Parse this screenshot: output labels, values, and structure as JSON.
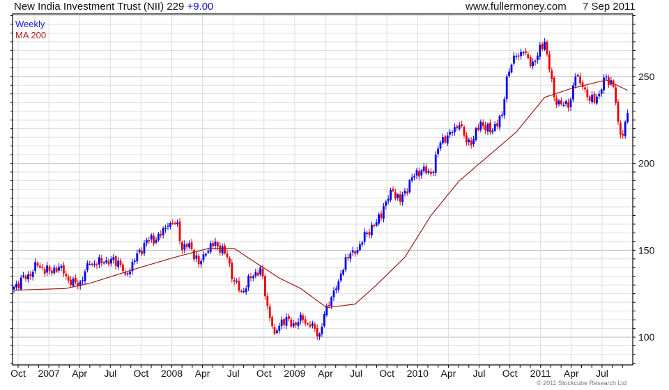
{
  "header": {
    "title": "New India Investment Trust (NII) 229",
    "change": "+9.00",
    "site": "www.fullermoney.com",
    "date": "7 Sep 2011"
  },
  "footer": {
    "copyright": "© 2011 Stockcube Research Ltd"
  },
  "colors": {
    "up": "#0000ee",
    "down": "#ee0000",
    "ma": "#a01818",
    "grid": "#dcdcdc",
    "grid_major": "#bbbbbb"
  },
  "chart_data": {
    "type": "bar",
    "subtype": "weekly-ohlc-with-moving-average",
    "title": "New India Investment Trust (NII) 229 +9.00",
    "legend": [
      "Weekly",
      "MA 200"
    ],
    "legend_position": "top-left",
    "ylim": [
      84,
      286
    ],
    "y_ticks": [
      "100",
      "150",
      "200",
      "250"
    ],
    "y_tick_values": [
      100,
      150,
      200,
      250
    ],
    "x_tick_labels": [
      "Oct",
      "2007",
      "Apr",
      "Jul",
      "Oct",
      "2008",
      "Apr",
      "Jul",
      "Oct",
      "2009",
      "Apr",
      "Jul",
      "Oct",
      "2010",
      "Apr",
      "Jul",
      "Oct",
      "2011",
      "Apr",
      "Jul"
    ],
    "x_range": "Sep 2006 - Sep 2011 (260 weeks)",
    "weekly_close_anchors": {
      "week": [
        0,
        6,
        10,
        15,
        20,
        24,
        28,
        32,
        38,
        44,
        47,
        51,
        56,
        60,
        65,
        69,
        71,
        74,
        78,
        81,
        85,
        90,
        93,
        96,
        100,
        104,
        107,
        110,
        113,
        118,
        122,
        125,
        129,
        132,
        137,
        140,
        144,
        149,
        153,
        157,
        160,
        163,
        168,
        172,
        176,
        180,
        184,
        188,
        191,
        194,
        197,
        201,
        206,
        208,
        211,
        215,
        218,
        221,
        224,
        226,
        228,
        231,
        234,
        237,
        240,
        243,
        247,
        250,
        253,
        255,
        257,
        259
      ],
      "close": [
        129,
        136,
        141,
        138,
        141,
        130,
        132,
        142,
        143,
        144,
        136,
        144,
        156,
        156,
        164,
        166,
        150,
        154,
        142,
        148,
        155,
        146,
        132,
        126,
        134,
        140,
        118,
        102,
        110,
        108,
        110,
        106,
        102,
        118,
        132,
        146,
        148,
        160,
        166,
        178,
        184,
        178,
        192,
        196,
        194,
        212,
        218,
        222,
        212,
        214,
        224,
        218,
        228,
        250,
        262,
        264,
        256,
        262,
        270,
        254,
        238,
        234,
        232,
        250,
        244,
        236,
        240,
        250,
        244,
        224,
        216,
        229
      ]
    },
    "ma_200": {
      "week": [
        0,
        22,
        32,
        53,
        68,
        82,
        93,
        103,
        112,
        121,
        132,
        144,
        153,
        165,
        176,
        188,
        200,
        212,
        224,
        235,
        250,
        259
      ],
      "value": [
        127,
        128,
        131,
        140,
        146,
        151,
        151,
        142,
        134,
        128,
        117,
        119,
        130,
        146,
        170,
        190,
        204,
        218,
        238,
        243,
        248,
        242
      ]
    }
  }
}
